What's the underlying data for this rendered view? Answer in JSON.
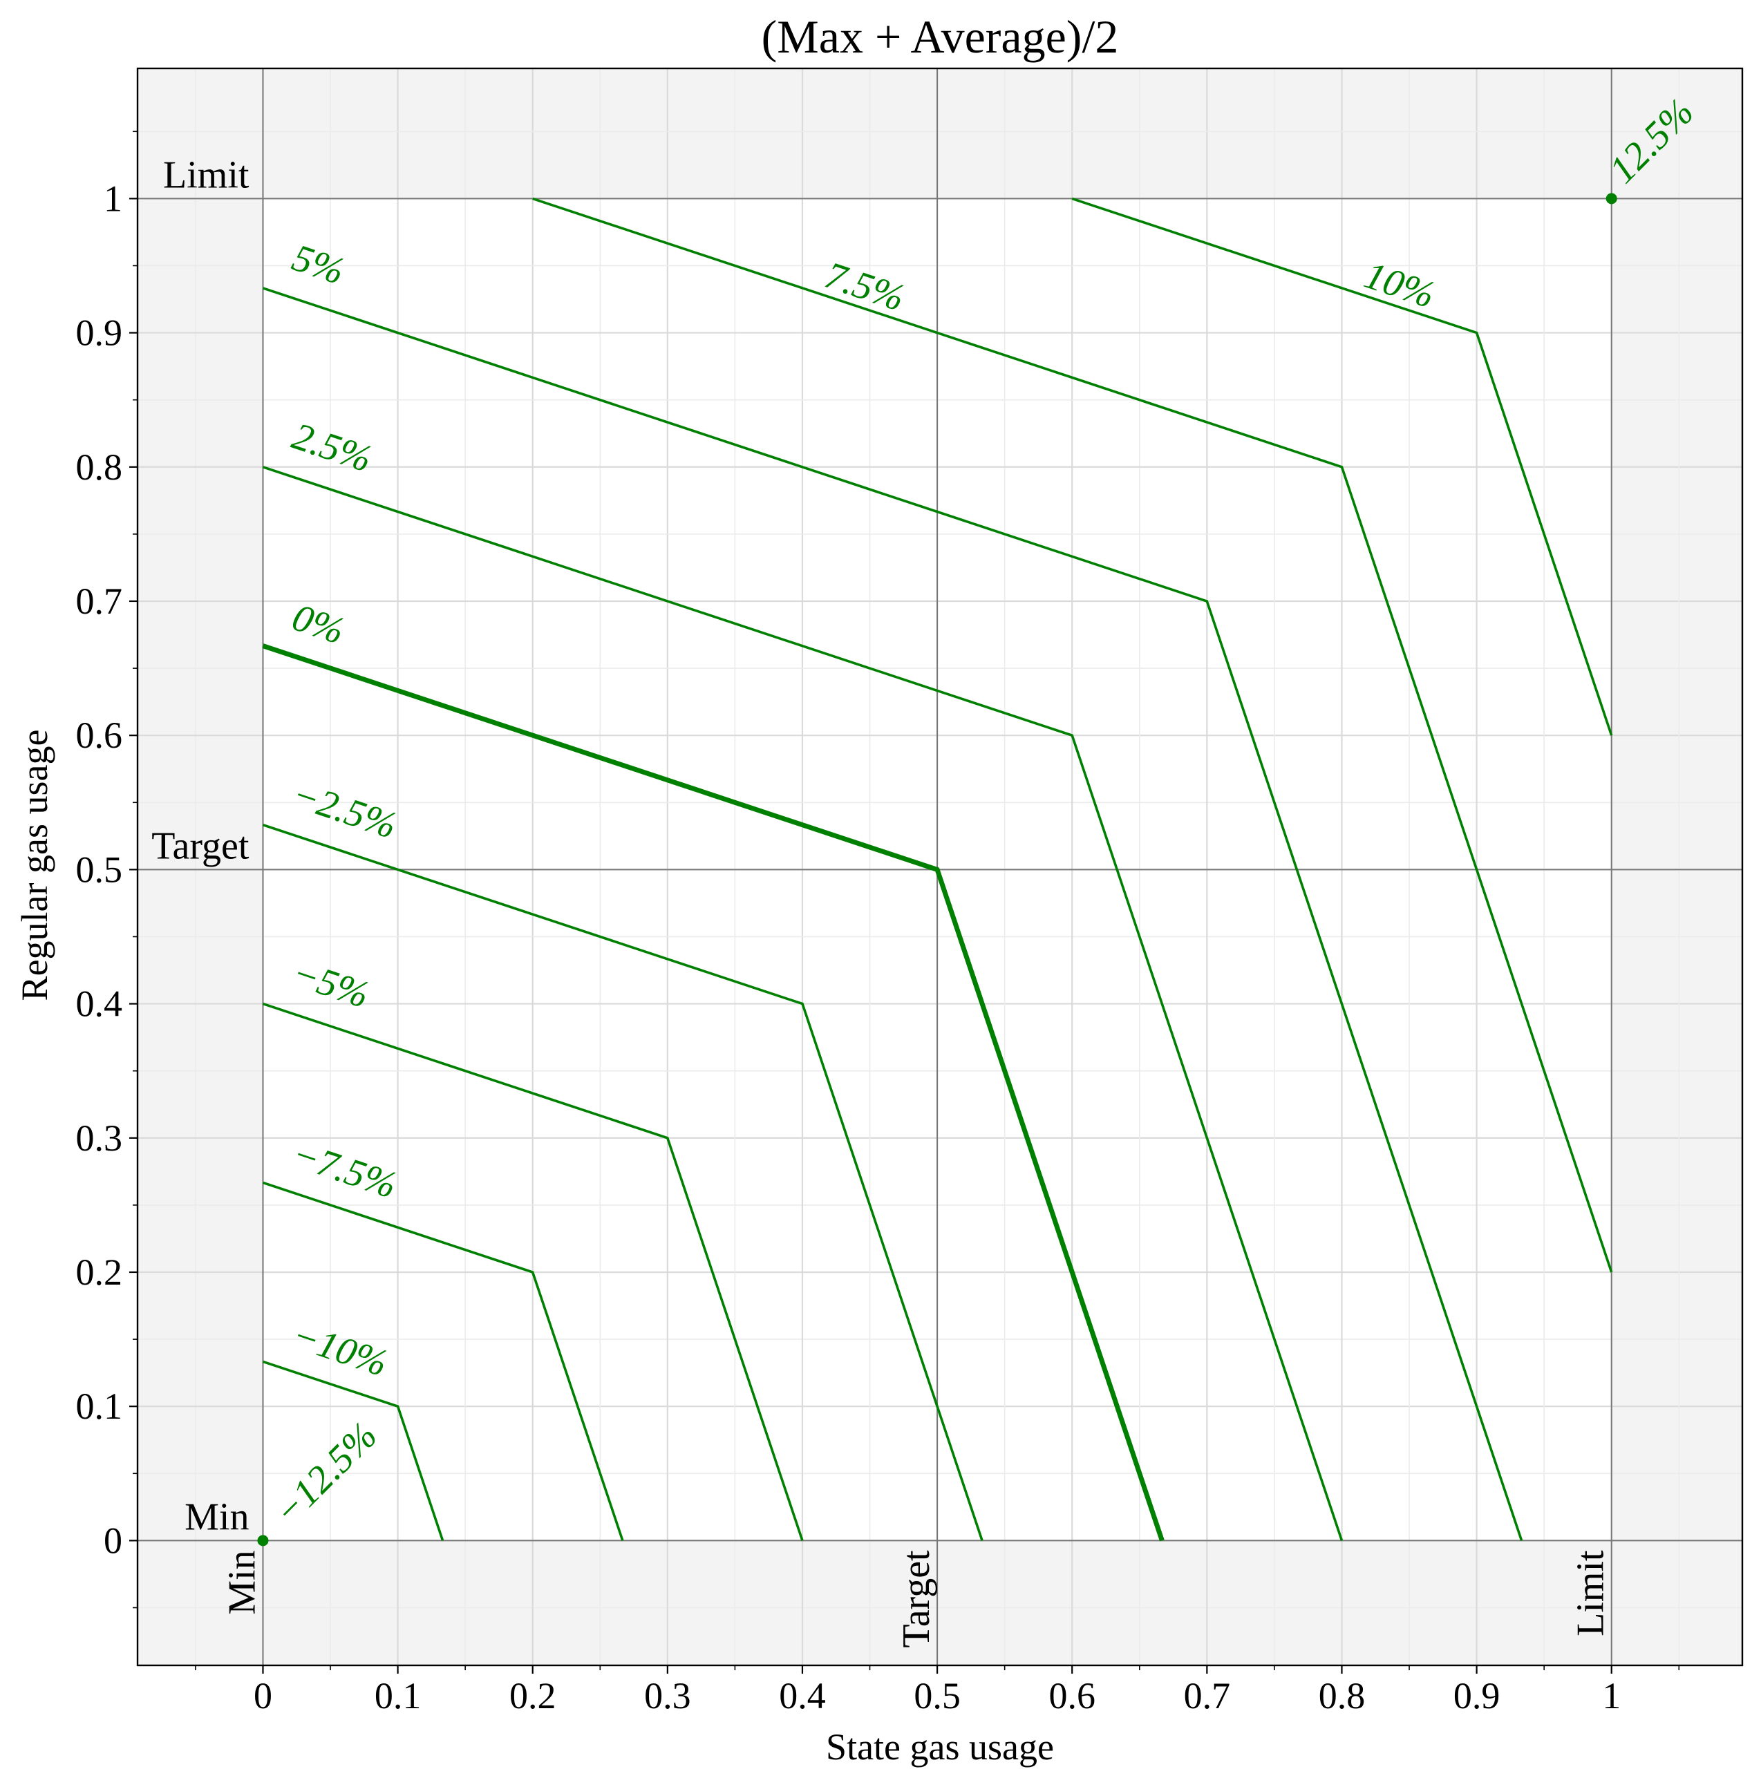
{
  "chart_data": {
    "type": "line",
    "title": "(Max + Average)/2",
    "xlabel": "State gas usage",
    "ylabel": "Regular gas usage",
    "xlim": [
      -0.093,
      1.097
    ],
    "ylim": [
      -0.093,
      1.097
    ],
    "xticks": [
      0,
      0.1,
      0.2,
      0.3,
      0.4,
      0.5,
      0.6,
      0.7,
      0.8,
      0.9,
      1
    ],
    "xtick_labels": [
      "0",
      "0.1",
      "0.2",
      "0.3",
      "0.4",
      "0.5",
      "0.6",
      "0.7",
      "0.8",
      "0.9",
      "1"
    ],
    "yticks": [
      0,
      0.1,
      0.2,
      0.3,
      0.4,
      0.5,
      0.6,
      0.7,
      0.8,
      0.9,
      1
    ],
    "ytick_labels": [
      "0",
      "0.1",
      "0.2",
      "0.3",
      "0.4",
      "0.5",
      "0.6",
      "0.7",
      "0.8",
      "0.9",
      "1"
    ],
    "grid": true,
    "shaded_regions": "outside [0,1] on both axes",
    "reference_lines": {
      "x": [
        {
          "value": 0,
          "label": "Min"
        },
        {
          "value": 0.5,
          "label": "Target"
        },
        {
          "value": 1,
          "label": "Limit"
        }
      ],
      "y": [
        {
          "value": 0,
          "label": "Min"
        },
        {
          "value": 0.5,
          "label": "Target"
        },
        {
          "value": 1,
          "label": "Limit"
        }
      ]
    },
    "line_color": "#008000",
    "series": [
      {
        "name": "−12.5%",
        "points": [
          [
            0,
            0
          ]
        ],
        "marker": true,
        "label_at": [
          0.02,
          0.01
        ]
      },
      {
        "name": "−10%",
        "points": [
          [
            0,
            0.1333
          ],
          [
            0.1,
            0.1
          ],
          [
            0.1333,
            0
          ]
        ],
        "label_at": [
          0.02,
          0.145
        ]
      },
      {
        "name": "−7.5%",
        "points": [
          [
            0,
            0.2667
          ],
          [
            0.2,
            0.2
          ],
          [
            0.2667,
            0
          ]
        ],
        "label_at": [
          0.02,
          0.28
        ]
      },
      {
        "name": "−5%",
        "points": [
          [
            0,
            0.4
          ],
          [
            0.3,
            0.3
          ],
          [
            0.4,
            0
          ]
        ],
        "label_at": [
          0.02,
          0.415
        ]
      },
      {
        "name": "−2.5%",
        "points": [
          [
            0,
            0.5333
          ],
          [
            0.4,
            0.4
          ],
          [
            0.5333,
            0
          ]
        ],
        "label_at": [
          0.02,
          0.548
        ]
      },
      {
        "name": "0%",
        "points": [
          [
            0,
            0.6667
          ],
          [
            0.5,
            0.5
          ],
          [
            0.6667,
            0
          ]
        ],
        "bold": true,
        "label_at": [
          0.02,
          0.68
        ]
      },
      {
        "name": "2.5%",
        "points": [
          [
            0,
            0.8
          ],
          [
            0.6,
            0.6
          ],
          [
            0.8,
            0
          ]
        ],
        "label_at": [
          0.02,
          0.815
        ]
      },
      {
        "name": "5%",
        "points": [
          [
            0,
            0.9333
          ],
          [
            0.7,
            0.7
          ],
          [
            0.9333,
            0
          ]
        ],
        "label_at": [
          0.02,
          0.948
        ]
      },
      {
        "name": "7.5%",
        "points": [
          [
            0.2,
            1
          ],
          [
            0.8,
            0.8
          ],
          [
            1,
            0.2
          ]
        ],
        "label_at": [
          0.415,
          0.935
        ]
      },
      {
        "name": "10%",
        "points": [
          [
            0.6,
            1
          ],
          [
            0.9,
            0.9
          ],
          [
            1,
            0.6
          ]
        ],
        "label_at": [
          0.815,
          0.935
        ]
      },
      {
        "name": "12.5%",
        "points": [
          [
            1,
            1
          ]
        ],
        "marker": true,
        "label_at": [
          1.01,
          1.01
        ]
      }
    ]
  }
}
